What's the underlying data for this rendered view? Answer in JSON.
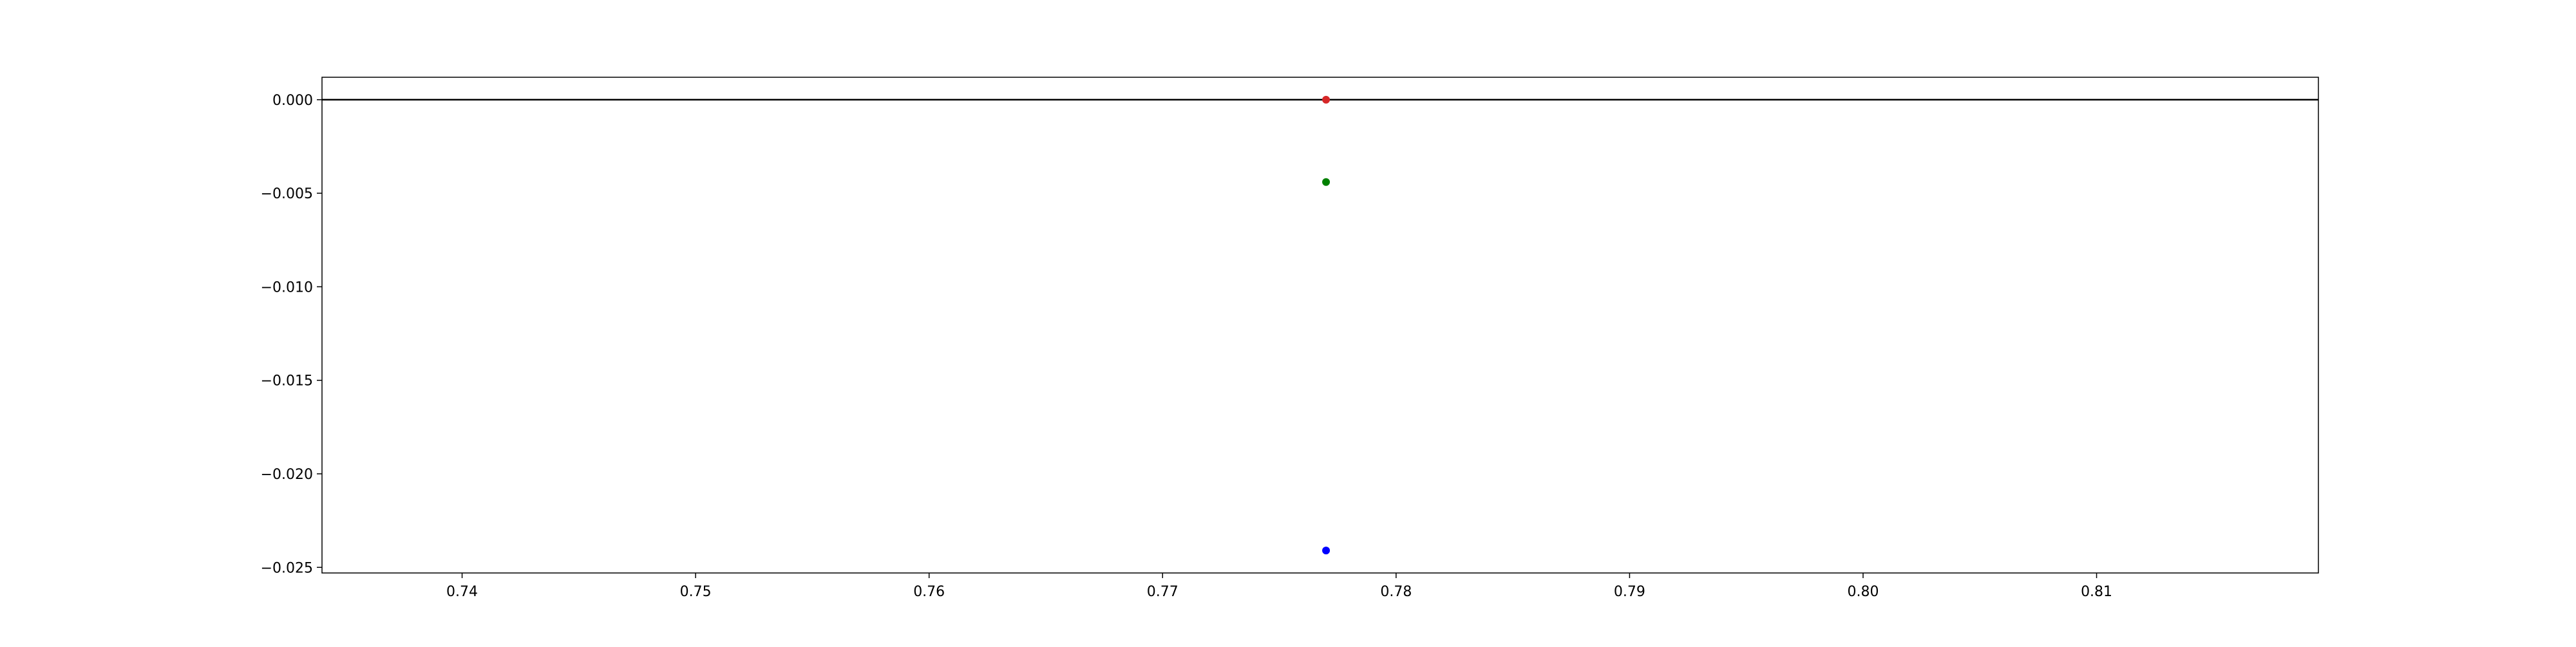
{
  "chart_data": {
    "type": "scatter",
    "title": "",
    "xlabel": "",
    "ylabel": "",
    "xlim": [
      0.734,
      0.8195
    ],
    "ylim": [
      -0.0253,
      0.0012
    ],
    "xticks": [
      0.74,
      0.75,
      0.76,
      0.77,
      0.78,
      0.79,
      0.8,
      0.81
    ],
    "xtick_labels": [
      "0.74",
      "0.75",
      "0.76",
      "0.77",
      "0.78",
      "0.79",
      "0.80",
      "0.81"
    ],
    "yticks": [
      0.0,
      -0.005,
      -0.01,
      -0.015,
      -0.02,
      -0.025
    ],
    "ytick_labels": [
      "0.000",
      "−0.005",
      "−0.010",
      "−0.015",
      "−0.020",
      "−0.025"
    ],
    "hline": {
      "y": 0.0,
      "color": "#000000"
    },
    "grid": false,
    "legend": "none",
    "points": [
      {
        "x": 0.777,
        "y": 0.0,
        "color": "#d62728"
      },
      {
        "x": 0.777,
        "y": -0.0044,
        "color": "#008000"
      },
      {
        "x": 0.777,
        "y": -0.0241,
        "color": "#0000ff"
      }
    ]
  }
}
